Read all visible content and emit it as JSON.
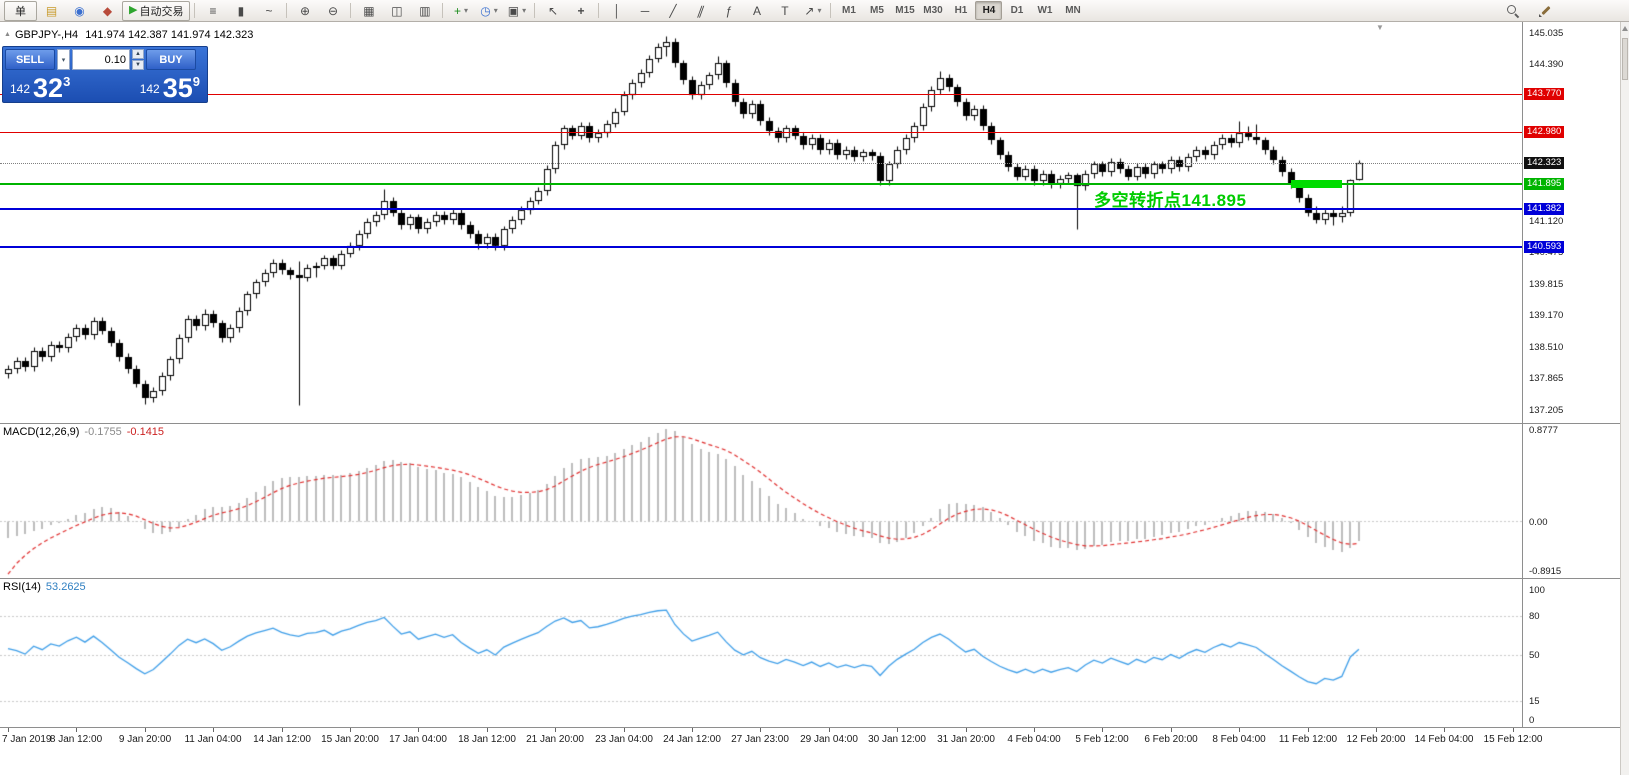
{
  "toolbar": {
    "groups": [
      {
        "items": [
          {
            "name": "new-order-button",
            "label": "单",
            "button": true
          },
          {
            "name": "profiles-icon",
            "glyph": "▤",
            "color": "#c89a2a"
          },
          {
            "name": "marketwatch-icon",
            "glyph": "◉",
            "color": "#3a6fd0"
          },
          {
            "name": "navigator-icon",
            "glyph": "◆",
            "color": "#b84a3a"
          },
          {
            "name": "autotrading-button",
            "label": "自动交易",
            "glyph": "▶",
            "glyph_color": "#2ea52e",
            "button": true
          }
        ]
      },
      {
        "items": [
          {
            "name": "bars-chart-icon",
            "glyph": "≡"
          },
          {
            "name": "candlestick-chart-icon",
            "glyph": "▮"
          },
          {
            "name": "line-chart-icon",
            "glyph": "~"
          }
        ]
      },
      {
        "items": [
          {
            "name": "zoom-in-icon",
            "glyph": "⊕"
          },
          {
            "name": "zoom-out-icon",
            "glyph": "⊖"
          }
        ]
      },
      {
        "items": [
          {
            "name": "tile-windows-icon",
            "glyph": "▦"
          },
          {
            "name": "cascade-windows-icon",
            "glyph": "◫"
          },
          {
            "name": "arrange-windows-icon",
            "glyph": "▥"
          }
        ]
      },
      {
        "items": [
          {
            "name": "add-indicator-button",
            "glyph": "+",
            "color": "#1e8e1e",
            "dropdown": true
          },
          {
            "name": "periods-button",
            "glyph": "◷",
            "color": "#3a6fd0",
            "dropdown": true
          },
          {
            "name": "templates-button",
            "glyph": "▣",
            "dropdown": true
          }
        ]
      },
      {
        "items": [
          {
            "name": "cursor-tool",
            "glyph": "↖"
          },
          {
            "name": "crosshair-tool",
            "glyph": "+"
          }
        ]
      },
      {
        "items": [
          {
            "name": "vertical-line-tool",
            "glyph": "│"
          },
          {
            "name": "horizontal-line-tool",
            "glyph": "─"
          },
          {
            "name": "trendline-tool",
            "glyph": "╱"
          },
          {
            "name": "channel-tool",
            "glyph": "∥"
          },
          {
            "name": "fibonacci-tool",
            "glyph": "ƒ"
          },
          {
            "name": "text-tool",
            "glyph": "A"
          },
          {
            "name": "label-tool",
            "glyph": "T"
          },
          {
            "name": "arrows-tool",
            "glyph": "↗",
            "dropdown": true
          }
        ]
      }
    ],
    "timeframes": [
      "M1",
      "M5",
      "M15",
      "M30",
      "H1",
      "H4",
      "D1",
      "W1",
      "MN"
    ],
    "active_timeframe": "H4",
    "right_items": [
      {
        "name": "search-icon",
        "type": "search"
      },
      {
        "name": "edit-icon",
        "type": "pencil"
      }
    ]
  },
  "chart": {
    "header": {
      "symbol": "GBPJPY-,H4",
      "ohlc": "141.974 142.387 141.974 142.323"
    },
    "trade_panel": {
      "sell_label": "SELL",
      "buy_label": "BUY",
      "volume": "0.10",
      "bid": {
        "prefix": "142",
        "big": "32",
        "sup": "3"
      },
      "ask": {
        "prefix": "142",
        "big": "35",
        "sup": "9"
      }
    },
    "annotation": {
      "text": "多空转折点141.895",
      "color": "#00cc00"
    }
  },
  "chart_data": {
    "type": "candlestick",
    "symbol": "GBPJPY",
    "timeframe": "H4",
    "price_range": [
      136.93,
      145.26
    ],
    "candles": [
      [
        137.95,
        138.13,
        137.87,
        138.05
      ],
      [
        138.05,
        138.3,
        137.97,
        138.22
      ],
      [
        138.22,
        138.3,
        138.02,
        138.1
      ],
      [
        138.1,
        138.5,
        138.02,
        138.42
      ],
      [
        138.42,
        138.5,
        138.22,
        138.3
      ],
      [
        138.3,
        138.63,
        138.22,
        138.55
      ],
      [
        138.55,
        138.63,
        138.4,
        138.48
      ],
      [
        138.48,
        138.8,
        138.4,
        138.72
      ],
      [
        138.72,
        138.98,
        138.64,
        138.9
      ],
      [
        138.9,
        138.98,
        138.67,
        138.75
      ],
      [
        138.75,
        139.13,
        138.67,
        139.05
      ],
      [
        139.05,
        139.13,
        138.77,
        138.85
      ],
      [
        138.85,
        138.93,
        138.52,
        138.6
      ],
      [
        138.6,
        138.68,
        138.22,
        138.3
      ],
      [
        138.3,
        138.38,
        137.97,
        138.05
      ],
      [
        138.05,
        138.13,
        137.67,
        137.75
      ],
      [
        137.75,
        137.83,
        137.32,
        137.45
      ],
      [
        137.45,
        137.68,
        137.37,
        137.6
      ],
      [
        137.6,
        137.98,
        137.52,
        137.9
      ],
      [
        137.9,
        138.33,
        137.82,
        138.25
      ],
      [
        138.25,
        138.78,
        138.17,
        138.7
      ],
      [
        138.7,
        139.18,
        138.62,
        139.1
      ],
      [
        139.1,
        139.18,
        138.87,
        138.95
      ],
      [
        138.95,
        139.3,
        138.87,
        139.2
      ],
      [
        139.2,
        139.28,
        138.92,
        139.0
      ],
      [
        139.0,
        139.08,
        138.62,
        138.7
      ],
      [
        138.7,
        138.98,
        138.62,
        138.9
      ],
      [
        138.9,
        139.33,
        138.82,
        139.25
      ],
      [
        139.25,
        139.68,
        139.17,
        139.6
      ],
      [
        139.6,
        139.93,
        139.52,
        139.85
      ],
      [
        139.85,
        140.13,
        139.77,
        140.05
      ],
      [
        140.05,
        140.33,
        139.97,
        140.25
      ],
      [
        140.25,
        140.33,
        140.02,
        140.1
      ],
      [
        140.1,
        140.18,
        139.92,
        140.0
      ],
      [
        140.0,
        140.3,
        137.3,
        139.95
      ],
      [
        139.95,
        140.23,
        139.87,
        140.15
      ],
      [
        140.15,
        140.28,
        139.97,
        140.2
      ],
      [
        140.2,
        140.43,
        140.12,
        140.35
      ],
      [
        140.35,
        140.43,
        140.12,
        140.2
      ],
      [
        140.2,
        140.53,
        140.12,
        140.45
      ],
      [
        140.45,
        140.68,
        140.37,
        140.6
      ],
      [
        140.6,
        140.93,
        140.52,
        140.85
      ],
      [
        140.85,
        141.18,
        140.77,
        141.1
      ],
      [
        141.1,
        141.33,
        141.02,
        141.25
      ],
      [
        141.25,
        141.8,
        141.17,
        141.55
      ],
      [
        141.55,
        141.63,
        141.22,
        141.3
      ],
      [
        141.3,
        141.38,
        140.97,
        141.05
      ],
      [
        141.05,
        141.28,
        140.97,
        141.2
      ],
      [
        141.2,
        141.28,
        140.87,
        140.95
      ],
      [
        140.95,
        141.18,
        140.87,
        141.1
      ],
      [
        141.1,
        141.33,
        141.02,
        141.25
      ],
      [
        141.25,
        141.33,
        141.07,
        141.15
      ],
      [
        141.15,
        141.38,
        141.07,
        141.3
      ],
      [
        141.3,
        141.38,
        140.97,
        141.05
      ],
      [
        141.05,
        141.13,
        140.77,
        140.85
      ],
      [
        140.85,
        140.93,
        140.55,
        140.65
      ],
      [
        140.65,
        140.88,
        140.57,
        140.8
      ],
      [
        140.8,
        140.88,
        140.53,
        140.6
      ],
      [
        140.6,
        141.03,
        140.52,
        140.95
      ],
      [
        140.95,
        141.23,
        140.87,
        141.15
      ],
      [
        141.15,
        141.43,
        141.07,
        141.35
      ],
      [
        141.35,
        141.63,
        141.27,
        141.55
      ],
      [
        141.55,
        141.83,
        141.47,
        141.75
      ],
      [
        141.75,
        142.28,
        141.67,
        142.2
      ],
      [
        142.2,
        142.78,
        142.12,
        142.7
      ],
      [
        142.7,
        143.13,
        142.62,
        143.05
      ],
      [
        143.05,
        143.13,
        142.82,
        142.9
      ],
      [
        142.9,
        143.18,
        142.82,
        143.1
      ],
      [
        143.1,
        143.18,
        142.77,
        142.85
      ],
      [
        142.85,
        143.03,
        142.77,
        142.95
      ],
      [
        142.95,
        143.23,
        142.87,
        143.15
      ],
      [
        143.15,
        143.48,
        143.07,
        143.4
      ],
      [
        143.4,
        143.83,
        143.32,
        143.75
      ],
      [
        143.75,
        144.08,
        143.67,
        144.0
      ],
      [
        144.0,
        144.28,
        143.92,
        144.2
      ],
      [
        144.2,
        144.58,
        144.12,
        144.5
      ],
      [
        144.5,
        144.83,
        144.42,
        144.75
      ],
      [
        144.75,
        144.97,
        144.55,
        144.85
      ],
      [
        144.85,
        144.93,
        144.32,
        144.4
      ],
      [
        144.4,
        144.48,
        143.97,
        144.05
      ],
      [
        144.05,
        144.13,
        143.67,
        143.75
      ],
      [
        143.75,
        144.03,
        143.67,
        143.95
      ],
      [
        143.95,
        144.23,
        143.87,
        144.15
      ],
      [
        144.15,
        144.55,
        144.07,
        144.4
      ],
      [
        144.4,
        144.48,
        143.92,
        144.0
      ],
      [
        144.0,
        144.08,
        143.52,
        143.6
      ],
      [
        143.6,
        143.68,
        143.27,
        143.35
      ],
      [
        143.35,
        143.63,
        143.27,
        143.55
      ],
      [
        143.55,
        143.63,
        143.12,
        143.2
      ],
      [
        143.2,
        143.28,
        142.92,
        143.0
      ],
      [
        143.0,
        143.08,
        142.77,
        142.85
      ],
      [
        142.85,
        143.13,
        142.77,
        143.05
      ],
      [
        143.05,
        143.13,
        142.82,
        142.9
      ],
      [
        142.9,
        142.98,
        142.62,
        142.7
      ],
      [
        142.7,
        142.93,
        142.62,
        142.85
      ],
      [
        142.85,
        142.93,
        142.52,
        142.6
      ],
      [
        142.6,
        142.83,
        142.52,
        142.75
      ],
      [
        142.75,
        142.83,
        142.42,
        142.5
      ],
      [
        142.5,
        142.68,
        142.42,
        142.6
      ],
      [
        142.6,
        142.68,
        142.37,
        142.45
      ],
      [
        142.45,
        142.63,
        142.37,
        142.55
      ],
      [
        142.55,
        142.63,
        142.4,
        142.48
      ],
      [
        142.48,
        142.56,
        141.87,
        141.95
      ],
      [
        141.95,
        142.38,
        141.87,
        142.3
      ],
      [
        142.3,
        142.68,
        142.22,
        142.6
      ],
      [
        142.6,
        142.93,
        142.52,
        142.85
      ],
      [
        142.85,
        143.18,
        142.77,
        143.1
      ],
      [
        143.1,
        143.58,
        143.02,
        143.5
      ],
      [
        143.5,
        143.93,
        143.42,
        143.85
      ],
      [
        143.85,
        144.25,
        143.77,
        144.1
      ],
      [
        144.1,
        144.18,
        143.82,
        143.9
      ],
      [
        143.9,
        143.98,
        143.52,
        143.6
      ],
      [
        143.6,
        143.68,
        143.22,
        143.3
      ],
      [
        143.3,
        143.53,
        143.22,
        143.45
      ],
      [
        143.45,
        143.53,
        143.02,
        143.1
      ],
      [
        143.1,
        143.18,
        142.72,
        142.8
      ],
      [
        142.8,
        142.88,
        142.42,
        142.5
      ],
      [
        142.5,
        142.58,
        142.17,
        142.25
      ],
      [
        142.25,
        142.33,
        141.97,
        142.05
      ],
      [
        142.05,
        142.28,
        141.97,
        142.2
      ],
      [
        142.2,
        142.28,
        141.87,
        141.95
      ],
      [
        141.95,
        142.18,
        141.87,
        142.1
      ],
      [
        142.1,
        142.18,
        141.82,
        141.9
      ],
      [
        141.9,
        142.08,
        141.82,
        142.0
      ],
      [
        142.0,
        142.15,
        141.92,
        142.08
      ],
      [
        142.08,
        142.12,
        140.97,
        141.85
      ],
      [
        141.85,
        142.18,
        141.77,
        142.1
      ],
      [
        142.1,
        142.38,
        142.02,
        142.3
      ],
      [
        142.3,
        142.38,
        142.07,
        142.15
      ],
      [
        142.15,
        142.43,
        142.07,
        142.35
      ],
      [
        142.35,
        142.43,
        142.12,
        142.2
      ],
      [
        142.2,
        142.28,
        141.97,
        142.05
      ],
      [
        142.05,
        142.33,
        141.97,
        142.25
      ],
      [
        142.25,
        142.33,
        142.02,
        142.1
      ],
      [
        142.1,
        142.38,
        142.02,
        142.3
      ],
      [
        142.3,
        142.38,
        142.12,
        142.2
      ],
      [
        142.2,
        142.48,
        142.12,
        142.4
      ],
      [
        142.4,
        142.48,
        142.17,
        142.25
      ],
      [
        142.25,
        142.53,
        142.17,
        142.45
      ],
      [
        142.45,
        142.68,
        142.37,
        142.6
      ],
      [
        142.6,
        142.68,
        142.42,
        142.5
      ],
      [
        142.5,
        142.78,
        142.42,
        142.7
      ],
      [
        142.7,
        142.93,
        142.62,
        142.85
      ],
      [
        142.85,
        142.93,
        142.67,
        142.75
      ],
      [
        142.75,
        143.2,
        142.67,
        142.95
      ],
      [
        142.95,
        143.1,
        142.8,
        142.88
      ],
      [
        142.88,
        143.15,
        142.72,
        142.8
      ],
      [
        142.8,
        142.88,
        142.52,
        142.6
      ],
      [
        142.6,
        142.68,
        142.32,
        142.4
      ],
      [
        142.4,
        142.48,
        142.07,
        142.15
      ],
      [
        142.15,
        142.23,
        141.82,
        141.9
      ],
      [
        141.9,
        141.98,
        141.52,
        141.6
      ],
      [
        141.6,
        141.68,
        141.22,
        141.3
      ],
      [
        141.3,
        141.43,
        141.08,
        141.15
      ],
      [
        141.15,
        141.38,
        141.07,
        141.3
      ],
      [
        141.3,
        141.38,
        141.05,
        141.2
      ],
      [
        141.2,
        141.43,
        141.1,
        141.3
      ],
      [
        141.3,
        141.99,
        141.22,
        141.97
      ],
      [
        141.974,
        142.387,
        141.974,
        142.323
      ]
    ],
    "price_axis_labels": [
      {
        "text": "145.035",
        "price": 145.035
      },
      {
        "text": "144.390",
        "price": 144.39
      },
      {
        "text": "141.120",
        "price": 141.12
      },
      {
        "text": "140.475",
        "price": 140.475
      },
      {
        "text": "139.815",
        "price": 139.815
      },
      {
        "text": "139.170",
        "price": 139.17
      },
      {
        "text": "138.510",
        "price": 138.51
      },
      {
        "text": "137.865",
        "price": 137.865
      },
      {
        "text": "137.205",
        "price": 137.205
      }
    ],
    "hlines": [
      {
        "price": 143.77,
        "text": "143.770",
        "color": "#e00000",
        "weight": 1
      },
      {
        "price": 142.98,
        "text": "142.980",
        "color": "#e00000",
        "weight": 1
      },
      {
        "price": 141.895,
        "text": "141.895",
        "color": "#00b400",
        "weight": 2
      },
      {
        "price": 141.382,
        "text": "141.382",
        "color": "#0000d8",
        "weight": 2
      },
      {
        "price": 140.593,
        "text": "140.593",
        "color": "#0000d8",
        "weight": 2
      }
    ],
    "current_price": {
      "text": "142.323",
      "price": 142.323
    },
    "highlight_segment": {
      "price": 141.895,
      "from_bar": 150,
      "to_bar": 156,
      "color": "#00dc00"
    },
    "annotation_anchor_bar": 127,
    "time_axis": {
      "bar_step": 8,
      "labels": [
        "7 Jan 2019",
        "8 Jan 12:00",
        "9 Jan 20:00",
        "11 Jan 04:00",
        "14 Jan 12:00",
        "15 Jan 20:00",
        "17 Jan 04:00",
        "18 Jan 12:00",
        "21 Jan 20:00",
        "23 Jan 04:00",
        "24 Jan 12:00",
        "27 Jan 23:00",
        "29 Jan 04:00",
        "30 Jan 12:00",
        "31 Jan 20:00",
        "4 Feb 04:00",
        "5 Feb 12:00",
        "6 Feb 20:00",
        "8 Feb 04:00",
        "11 Feb 12:00",
        "12 Feb 20:00",
        "14 Feb 04:00",
        "15 Feb 12:00"
      ]
    },
    "macd": {
      "name": "MACD(12,26,9)",
      "value_main": "-0.1755",
      "value_signal": "-0.1415",
      "axis_max": "0.8777",
      "axis_zero": "0.00",
      "axis_min": "-0.8915",
      "histogram_color": "#bdbdbd",
      "signal_color": "#e03030",
      "params": {
        "fast": 12,
        "slow": 26,
        "signal": 9
      }
    },
    "rsi": {
      "name": "RSI(14)",
      "value": "53.2625",
      "period": 14,
      "line_color": "#3e9ee8",
      "levels": [
        80,
        50,
        15
      ],
      "axis_labels": [
        {
          "text": "100",
          "value": 100
        },
        {
          "text": "80",
          "value": 80
        },
        {
          "text": "50",
          "value": 50
        },
        {
          "text": "15",
          "value": 15
        },
        {
          "text": "0",
          "value": 0
        }
      ]
    }
  }
}
